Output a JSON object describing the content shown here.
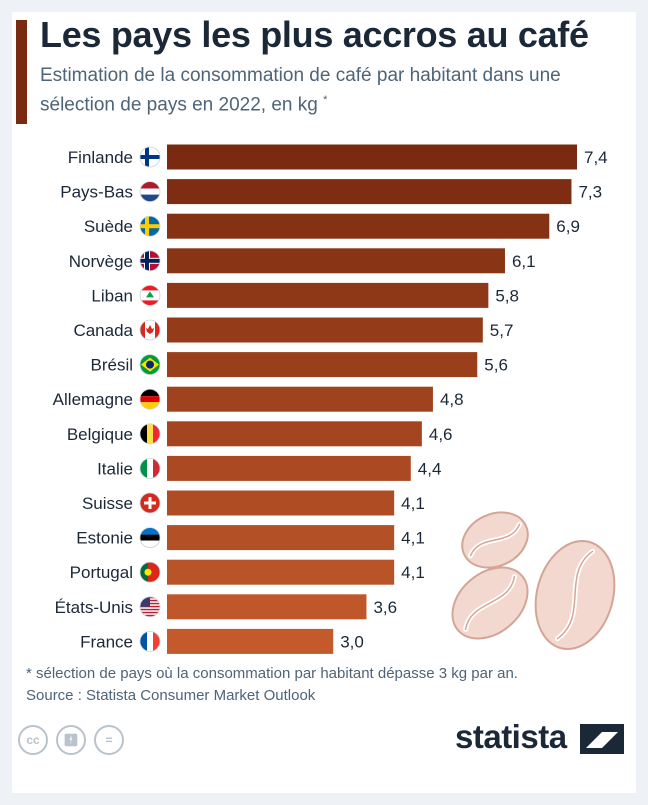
{
  "header": {
    "title": "Les pays les plus accros au café",
    "subtitle": "Estimation de la consommation de café par habitant dans une sélection de pays en 2022, en kg",
    "subtitle_mark": "*"
  },
  "footer": {
    "note": "* sélection de pays où la consommation par habitant dépasse 3 kg par an.",
    "source": "Source : Statista Consumer Market Outlook",
    "logo": "statista",
    "license_icons": [
      "cc-icon",
      "by-icon",
      "nd-icon"
    ]
  },
  "colors": {
    "bar_dark": "#7a2a10",
    "bar_light": "#c45a2c",
    "title_bar": "#7b2a12",
    "bean": "#f2d8cf",
    "bean_stroke": "#d4a596"
  },
  "chart_data": {
    "type": "bar",
    "orientation": "horizontal",
    "categories": [
      "Finlande",
      "Pays-Bas",
      "Suède",
      "Norvège",
      "Liban",
      "Canada",
      "Brésil",
      "Allemagne",
      "Belgique",
      "Italie",
      "Suisse",
      "Estonie",
      "Portugal",
      "États-Unis",
      "France"
    ],
    "values": [
      7.4,
      7.3,
      6.9,
      6.1,
      5.8,
      5.7,
      5.6,
      4.8,
      4.6,
      4.4,
      4.1,
      4.1,
      4.1,
      3.6,
      3.0
    ],
    "value_labels": [
      "7,4",
      "7,3",
      "6,9",
      "6,1",
      "5,8",
      "5,7",
      "5,6",
      "4,8",
      "4,6",
      "4,4",
      "4,1",
      "4,1",
      "4,1",
      "3,6",
      "3,0"
    ],
    "flags": [
      "fi",
      "nl",
      "se",
      "no",
      "lb",
      "ca",
      "br",
      "de",
      "be",
      "it",
      "ch",
      "ee",
      "pt",
      "us",
      "fr"
    ],
    "xlim": [
      0,
      7.4
    ],
    "grid": false,
    "legend": "none"
  }
}
